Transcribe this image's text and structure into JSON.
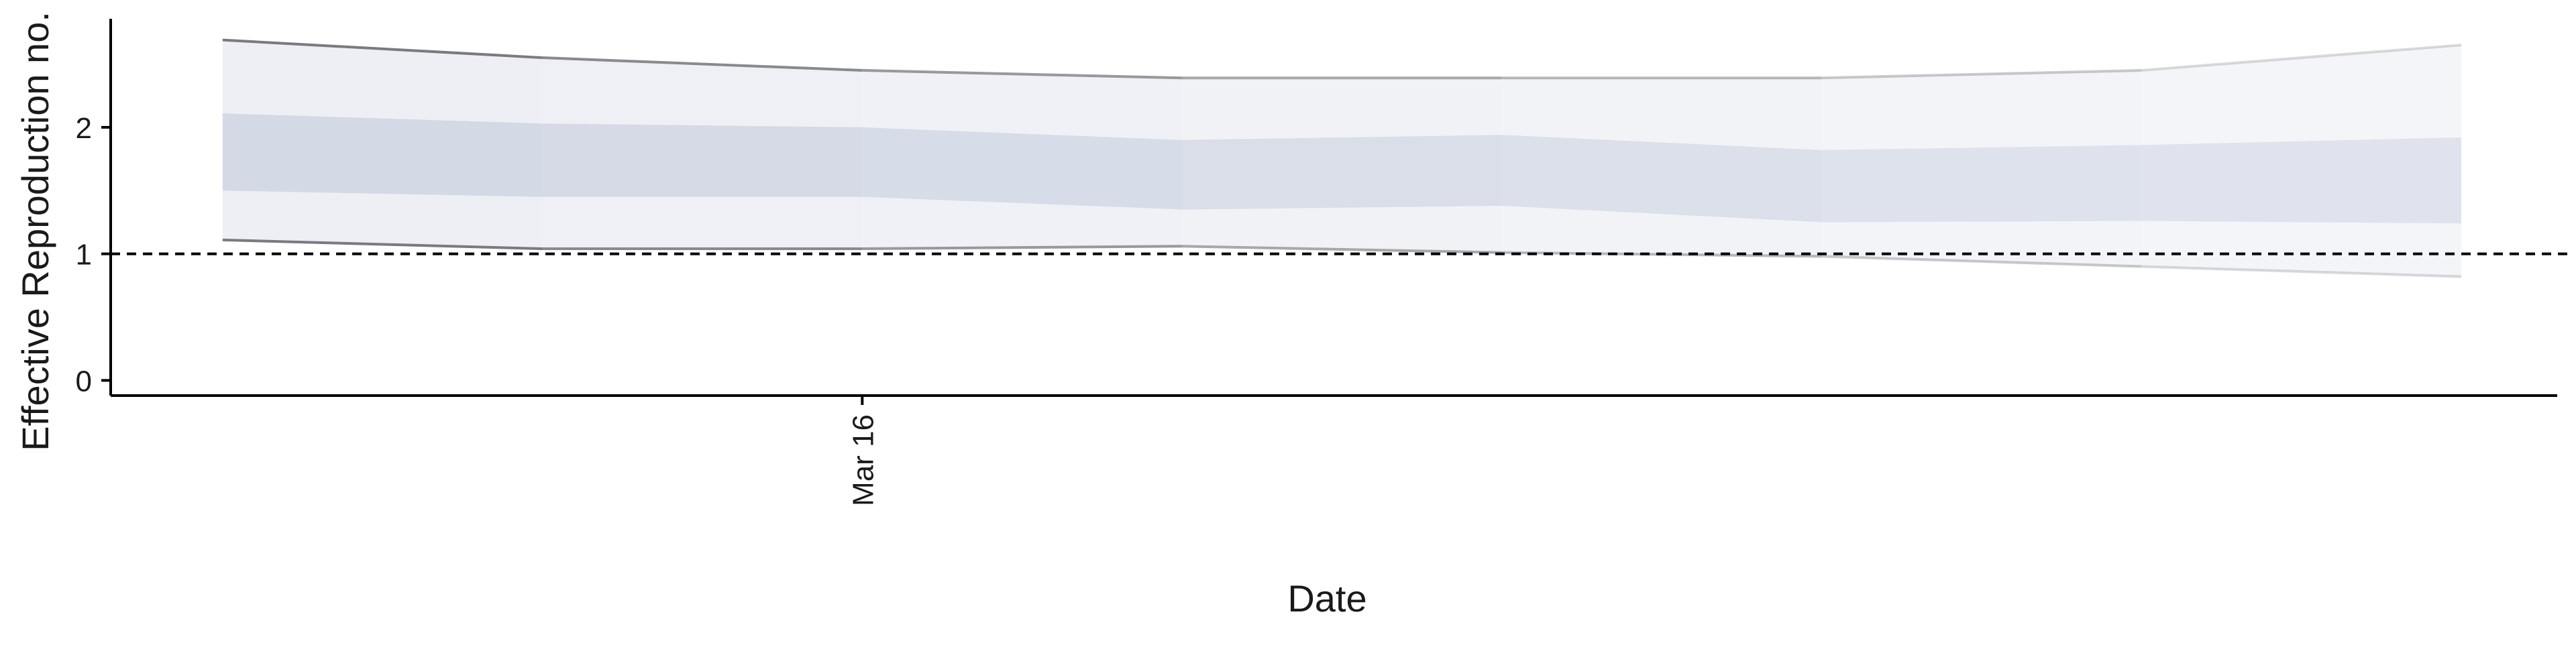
{
  "chart_data": {
    "type": "area",
    "xlabel": "Date",
    "ylabel": "Effective Reproduction no.",
    "x": [
      0,
      1,
      2,
      3,
      4,
      5,
      6,
      7
    ],
    "x_tick_labels": [
      {
        "x": 2,
        "label": "Mar 16"
      }
    ],
    "y_ticks": [
      0,
      1,
      2
    ],
    "xlim": [
      -0.35,
      7.3
    ],
    "ylim": [
      -0.12,
      2.9
    ],
    "reference_line": {
      "y": 1,
      "style": "dashed"
    },
    "series": [
      {
        "outer_upper": [
          2.69,
          2.55,
          2.45,
          2.39,
          2.39,
          2.39,
          2.45,
          2.65
        ],
        "outer_lower": [
          1.11,
          1.04,
          1.04,
          1.06,
          1.01,
          0.98,
          0.9,
          0.82
        ],
        "inner_upper": [
          2.11,
          2.03,
          2.0,
          1.9,
          1.94,
          1.82,
          1.86,
          1.92
        ],
        "inner_lower": [
          1.5,
          1.45,
          1.45,
          1.35,
          1.38,
          1.25,
          1.26,
          1.24
        ]
      }
    ],
    "grid": false,
    "legend": "none",
    "colors": {
      "inner_band": "#cfd5e3",
      "outer_band": "#eceef4",
      "bound_line": "#7a7a80",
      "axis": "#000000",
      "text": "#1a1a1a"
    }
  }
}
